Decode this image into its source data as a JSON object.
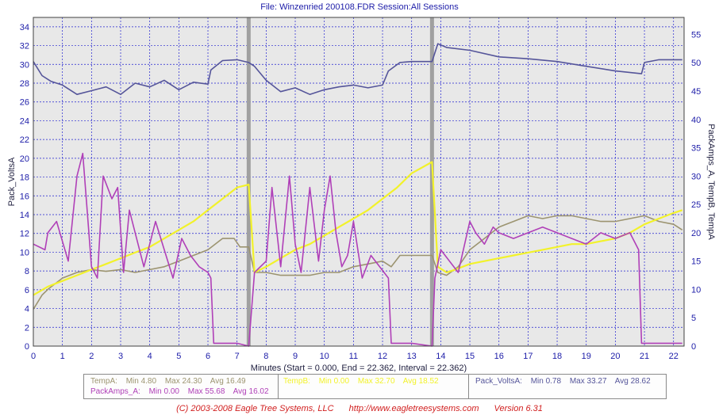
{
  "header": {
    "title": "File: Winzenried 200108.FDR   Session:All Sessions"
  },
  "footer": {
    "copyright": "(C) 2003-2008 Eagle Tree Systems, LLC",
    "url": "http://www.eagletreesystems.com",
    "version": "Version 6.31"
  },
  "colors": {
    "pack_volts": "#55559a",
    "pack_amps": "#b040b8",
    "temp_a": "#9c9470",
    "temp_b": "#f2f22a",
    "axis_text": "#1c1ca8",
    "grid": "#2020d0",
    "plot_bg": "#e8e8e8",
    "separator": "#a0a0a0"
  },
  "legend": {
    "temp_a": {
      "name": "TempA:",
      "min": "Min 4.80",
      "max": "Max 24.30",
      "avg": "Avg 16.49"
    },
    "pack_amps": {
      "name": "PackAmps_A:",
      "min": "Min 0.00",
      "max": "Max 55.68",
      "avg": "Avg 16.02"
    },
    "temp_b": {
      "name": "TempB:",
      "min": "Min 0.00",
      "max": "Max 32.70",
      "avg": "Avg 18.52"
    },
    "pack_volts": {
      "name": "Pack_VoltsA:",
      "min": "Min 0.78",
      "max": "Max 33.27",
      "avg": "Avg 28.62"
    }
  },
  "chart_data": {
    "type": "line",
    "title": "File: Winzenried 200108.FDR   Session:All Sessions",
    "xlabel": "Minutes (Start = 0.000,  End = 22.362,  Interval = 22.362)",
    "ylabel_left": "Pack_VoltsA",
    "ylabel_right": "PackAmps_A, TempB, TempA",
    "xlim": [
      0,
      22.362
    ],
    "ylim_left": [
      0,
      35
    ],
    "ylim_right": [
      0,
      58
    ],
    "x_ticks": [
      0,
      1,
      2,
      3,
      4,
      5,
      6,
      7,
      8,
      9,
      10,
      11,
      12,
      13,
      14,
      15,
      16,
      17,
      18,
      19,
      20,
      21,
      22
    ],
    "y_ticks_left": [
      0,
      2,
      4,
      6,
      8,
      10,
      12,
      14,
      16,
      18,
      20,
      22,
      24,
      26,
      28,
      30,
      32,
      34
    ],
    "y_ticks_right": [
      0,
      5,
      10,
      15,
      20,
      25,
      30,
      35,
      40,
      45,
      50,
      55
    ],
    "grid": true,
    "session_breaks": [
      7.4,
      13.7
    ],
    "series": [
      {
        "name": "Pack_VoltsA",
        "axis": "left",
        "x": [
          0,
          0.3,
          0.6,
          1,
          1.5,
          2,
          2.5,
          3,
          3.5,
          4,
          4.5,
          5,
          5.5,
          6,
          6.1,
          6.5,
          7,
          7.4,
          7.6,
          8,
          8.5,
          9,
          9.5,
          10,
          10.5,
          11,
          11.5,
          12,
          12.2,
          12.6,
          13,
          13.7,
          13.9,
          14.2,
          15,
          16,
          17,
          18,
          19,
          20,
          20.9,
          21,
          21.5,
          22.3
        ],
        "y": [
          30.3,
          28.8,
          28.2,
          27.8,
          26.8,
          27.2,
          27.6,
          26.8,
          28.0,
          27.6,
          28.3,
          27.3,
          28.1,
          27.9,
          29.4,
          30.4,
          30.5,
          30.2,
          29.8,
          28.3,
          27.1,
          27.5,
          26.8,
          27.3,
          27.6,
          27.8,
          27.5,
          27.8,
          29.3,
          30.2,
          30.3,
          30.3,
          32.2,
          31.8,
          31.5,
          30.8,
          30.6,
          30.3,
          29.8,
          29.3,
          29.0,
          30.2,
          30.5,
          30.5
        ]
      },
      {
        "name": "PackAmps_A",
        "axis": "right",
        "x": [
          0,
          0.4,
          0.5,
          0.8,
          1.2,
          1.5,
          1.7,
          2,
          2.2,
          2.4,
          2.7,
          2.9,
          3.1,
          3.3,
          3.5,
          3.8,
          4.2,
          4.5,
          4.8,
          5.1,
          5.4,
          5.7,
          6,
          6.1,
          6.2,
          7,
          7.4,
          7.6,
          8,
          8.2,
          8.5,
          8.8,
          9,
          9.2,
          9.5,
          9.8,
          10,
          10.2,
          10.4,
          10.6,
          10.8,
          11,
          11.3,
          11.6,
          11.9,
          12.2,
          12.3,
          13,
          13.7,
          13.8,
          14,
          14.3,
          14.6,
          15,
          15.2,
          15.5,
          15.8,
          16,
          16.5,
          17,
          17.5,
          18,
          18.5,
          19,
          19.5,
          20,
          20.5,
          20.8,
          20.9,
          22.3
        ],
        "y": [
          18,
          17,
          20,
          22,
          15,
          30,
          34,
          14,
          12,
          30,
          26,
          28,
          13,
          24,
          20,
          14,
          22,
          17,
          12,
          19,
          16,
          14,
          13,
          12,
          0.5,
          0.5,
          0,
          13,
          15,
          28,
          14,
          30,
          18,
          13,
          28,
          15,
          24,
          30,
          20,
          14,
          16,
          22,
          12,
          16,
          14,
          12,
          0.5,
          0.5,
          0,
          12,
          17,
          15,
          13,
          22,
          20,
          18,
          21,
          20,
          19,
          20,
          21,
          20,
          19,
          18,
          20,
          19,
          20,
          17,
          0.5,
          0.5
        ]
      },
      {
        "name": "TempA",
        "axis": "right",
        "x": [
          0,
          0.3,
          0.5,
          1,
          1.5,
          2,
          2.5,
          3,
          3.5,
          4,
          4.5,
          5,
          5.5,
          6,
          6.5,
          6.9,
          7.1,
          7.4,
          7.6,
          8,
          8.5,
          9,
          9.5,
          10,
          10.5,
          11,
          11.5,
          12,
          12.3,
          12.6,
          13,
          13.7,
          13.9,
          14.2,
          14.6,
          15,
          15.5,
          16,
          16.5,
          17,
          17.5,
          18,
          18.5,
          19,
          19.5,
          20,
          20.5,
          21,
          21.5,
          22,
          22.3
        ],
        "y": [
          6.5,
          9,
          10,
          12,
          13,
          13.5,
          13.2,
          13.5,
          13.0,
          13.5,
          14,
          15,
          16,
          17,
          19,
          19,
          17.5,
          17.5,
          13,
          13,
          12.5,
          12.5,
          12.5,
          13,
          13,
          14,
          14.5,
          15,
          14,
          16,
          16,
          16,
          13,
          12.5,
          14,
          17,
          19,
          21,
          22,
          23,
          22.5,
          23,
          23,
          22.5,
          22,
          22,
          22.5,
          23,
          22,
          21.5,
          20.5
        ]
      },
      {
        "name": "TempB",
        "axis": "right",
        "x": [
          0,
          0.5,
          1,
          1.5,
          2,
          2.5,
          3,
          3.5,
          4,
          4.5,
          5,
          5.5,
          6,
          6.5,
          7,
          7.4,
          7.6,
          8,
          8.5,
          9,
          9.5,
          10,
          10.5,
          11,
          11.5,
          12,
          12.5,
          13,
          13.7,
          13.9,
          14.2,
          14.5,
          15,
          15.5,
          16,
          16.5,
          17,
          17.5,
          18,
          18.5,
          19,
          19.5,
          20,
          20.5,
          21,
          21.5,
          22,
          22.3
        ],
        "y": [
          9,
          10.5,
          11.5,
          12.5,
          13.5,
          14.5,
          15.5,
          16.5,
          17.5,
          19,
          20.5,
          22,
          24,
          26,
          28,
          28.5,
          13,
          14,
          15.5,
          17,
          18,
          19.5,
          21,
          22.5,
          24,
          26,
          28,
          30.5,
          32.5,
          14,
          13,
          13.5,
          14.5,
          15,
          15.5,
          16,
          16.5,
          17,
          17.5,
          18,
          18,
          18.5,
          19,
          20,
          21.5,
          22.5,
          23.5,
          24
        ]
      }
    ]
  }
}
